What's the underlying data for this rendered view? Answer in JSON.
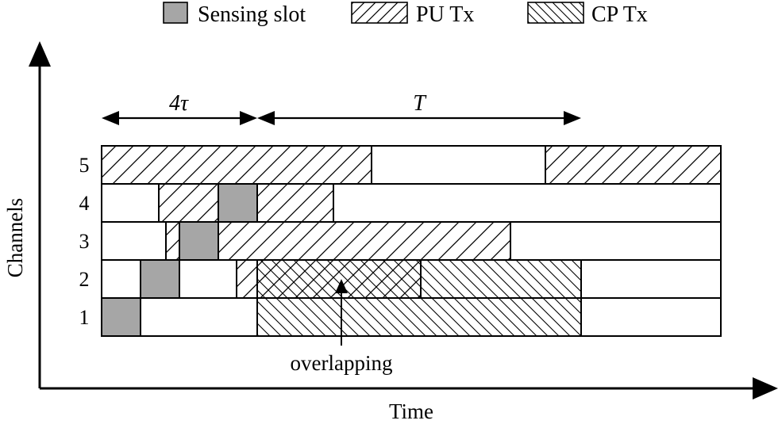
{
  "legend": {
    "sensing": "Sensing slot",
    "pu": "PU Tx",
    "cp": "CP Tx"
  },
  "axes": {
    "y_label": "Channels",
    "x_label": "Time"
  },
  "dimensions": {
    "span_a": "4τ",
    "span_b": "T"
  },
  "annotation": "overlapping",
  "channels": [
    {
      "label": "5",
      "row": 5
    },
    {
      "label": "4",
      "row": 4
    },
    {
      "label": "3",
      "row": 3
    },
    {
      "label": "2",
      "row": 2
    },
    {
      "label": "1",
      "row": 1
    }
  ],
  "colors": {
    "sensing_fill": "#a6a6a6",
    "stroke": "#000000",
    "background": "#ffffff"
  }
}
